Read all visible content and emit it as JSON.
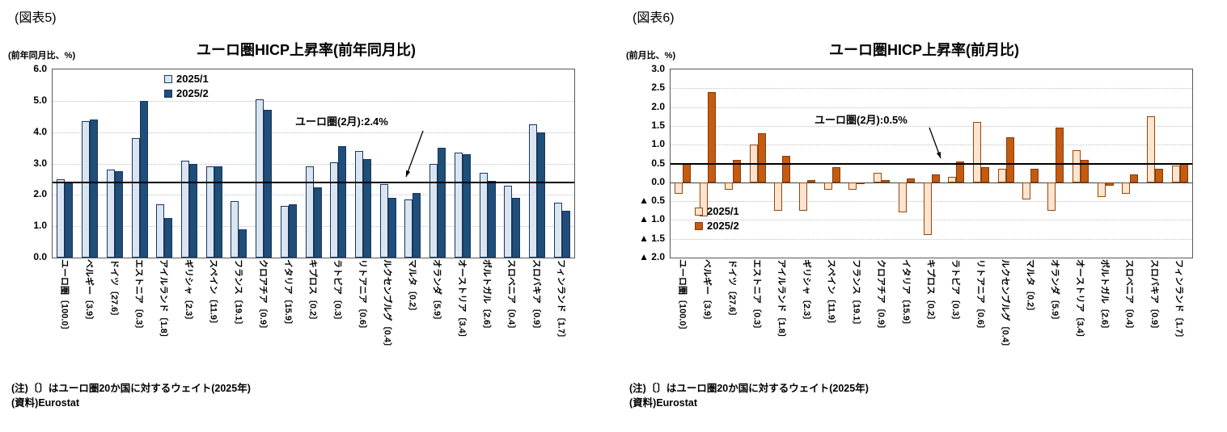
{
  "chart_data": [
    {
      "type": "bar",
      "fig_label": "(図表5)",
      "unit_label": "(前年同月比、%)",
      "title": "ユーロ圏HICP上昇率(前年同月比)",
      "ylim": [
        0,
        6
      ],
      "yticks": [
        {
          "v": 6.0,
          "label": "6.0"
        },
        {
          "v": 5.0,
          "label": "5.0"
        },
        {
          "v": 4.0,
          "label": "4.0"
        },
        {
          "v": 3.0,
          "label": "3.0"
        },
        {
          "v": 2.0,
          "label": "2.0"
        },
        {
          "v": 1.0,
          "label": "1.0"
        },
        {
          "v": 0.0,
          "label": "0.0"
        }
      ],
      "grid": "dotted-horizontal",
      "legend_position": "top-center-inside",
      "categories": [
        "ユーロ圏〔100.0〕",
        "ベルギー〔3.9〕",
        "ドイツ〔27.6〕",
        "エストニア〔0.3〕",
        "アイルランド〔1.8〕",
        "ギリシャ〔2.3〕",
        "スペイン〔11.9〕",
        "フランス〔19.1〕",
        "クロアチア〔0.9〕",
        "イタリア〔15.9〕",
        "キプロス〔0.2〕",
        "ラトビア〔0.3〕",
        "リトアニア〔0.6〕",
        "ルクセンブルグ〔0.4〕",
        "マルタ〔0.2〕",
        "オランダ〔5.9〕",
        "オーストリア〔3.4〕",
        "ポルトガル〔2.6〕",
        "スロベニア〔0.4〕",
        "スロバキア〔0.9〕",
        "フィンランド〔1.7〕"
      ],
      "series": [
        {
          "name": "2025/1",
          "fill": "#dbe5f1",
          "border": "#17375e",
          "values": [
            2.5,
            4.35,
            2.8,
            3.8,
            1.7,
            3.1,
            2.9,
            1.8,
            5.05,
            1.65,
            2.9,
            3.05,
            3.4,
            2.35,
            1.85,
            3.0,
            3.35,
            2.7,
            2.3,
            4.25,
            1.75
          ]
        },
        {
          "name": "2025/2",
          "fill": "#1f4e79",
          "border": "#17375e",
          "values": [
            2.4,
            4.4,
            2.75,
            5.0,
            1.25,
            3.0,
            2.9,
            0.9,
            4.7,
            1.7,
            2.25,
            3.55,
            3.15,
            1.9,
            2.05,
            3.5,
            3.3,
            2.45,
            1.9,
            4.0,
            1.5
          ]
        }
      ],
      "ref_line": {
        "value": 2.4,
        "color": "#000000"
      },
      "annotation": {
        "text": "ユーロ圏(2月):2.4%"
      },
      "note1": "(注)〔〕はユーロ圏20か国に対するウェイト(2025年)",
      "note2": "(資料)Eurostat"
    },
    {
      "type": "bar",
      "fig_label": "(図表6)",
      "unit_label": "(前月比、%)",
      "title": "ユーロ圏HICP上昇率(前月比)",
      "ylim": [
        -2,
        3
      ],
      "yticks": [
        {
          "v": 3.0,
          "label": "3.0"
        },
        {
          "v": 2.5,
          "label": "2.5"
        },
        {
          "v": 2.0,
          "label": "2.0"
        },
        {
          "v": 1.5,
          "label": "1.5"
        },
        {
          "v": 1.0,
          "label": "1.0"
        },
        {
          "v": 0.5,
          "label": "0.5"
        },
        {
          "v": 0.0,
          "label": "0.0"
        },
        {
          "v": -0.5,
          "label": "▲ 0.5"
        },
        {
          "v": -1.0,
          "label": "▲ 1.0"
        },
        {
          "v": -1.5,
          "label": "▲ 1.5"
        },
        {
          "v": -2.0,
          "label": "▲ 2.0"
        }
      ],
      "grid": "dotted-horizontal",
      "legend_position": "bottom-left-inside",
      "categories": [
        "ユーロ圏〔100.0〕",
        "ベルギー〔3.9〕",
        "ドイツ〔27.6〕",
        "エストニア〔0.3〕",
        "アイルランド〔1.8〕",
        "ギリシャ〔2.3〕",
        "スペイン〔11.9〕",
        "フランス〔19.1〕",
        "クロアチア〔0.9〕",
        "イタリア〔15.9〕",
        "キプロス〔0.2〕",
        "ラトビア〔0.3〕",
        "リトアニア〔0.6〕",
        "ルクセンブルグ〔0.4〕",
        "マルタ〔0.2〕",
        "オランダ〔5.9〕",
        "オーストリア〔3.4〕",
        "ポルトガル〔2.6〕",
        "スロベニア〔0.4〕",
        "スロバキア〔0.9〕",
        "フィンランド〔1.7〕"
      ],
      "series": [
        {
          "name": "2025/1",
          "fill": "#fce4d0",
          "border": "#974706",
          "values": [
            -0.3,
            -0.9,
            -0.2,
            1.0,
            -0.75,
            -0.75,
            -0.2,
            -0.2,
            0.25,
            -0.8,
            -1.4,
            0.15,
            1.6,
            0.35,
            -0.45,
            -0.75,
            0.85,
            -0.4,
            -0.3,
            1.75,
            0.45
          ]
        },
        {
          "name": "2025/2",
          "fill": "#c55a11",
          "border": "#843c0c",
          "values": [
            0.5,
            2.4,
            0.6,
            1.3,
            0.7,
            0.05,
            0.4,
            -0.05,
            0.05,
            0.1,
            0.2,
            0.55,
            0.4,
            1.2,
            0.35,
            1.45,
            0.6,
            -0.1,
            0.2,
            0.35,
            0.5
          ]
        }
      ],
      "ref_line": {
        "value": 0.5,
        "color": "#000000"
      },
      "annotation": {
        "text": "ユーロ圏(2月):0.5%"
      },
      "note1": "(注)〔〕はユーロ圏20か国に対するウェイト(2025年)",
      "note2": "(資料)Eurostat"
    }
  ]
}
